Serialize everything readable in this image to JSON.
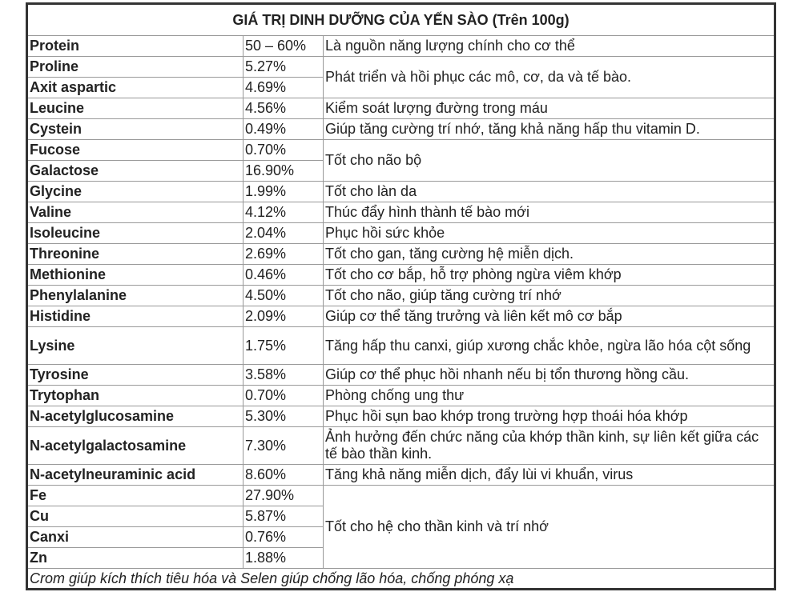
{
  "title": "GIÁ TRỊ DINH DƯỠNG CỦA YẾN SÀO (Trên 100g)",
  "rows": [
    {
      "name": "Protein",
      "value": "50 – 60%",
      "benefit": "Là nguồn năng lượng chính cho cơ thể"
    },
    {
      "name": "Proline",
      "value": "5.27%",
      "benefit": "Phát triển và hồi phục các mô, cơ, da và tế bào."
    },
    {
      "name": "Axit aspartic",
      "value": "4.69%"
    },
    {
      "name": "Leucine",
      "value": "4.56%",
      "benefit": "Kiểm soát lượng đường trong máu"
    },
    {
      "name": "Cystein",
      "value": "0.49%",
      "benefit": "Giúp tăng cường trí nhớ, tăng khả năng hấp thu vitamin D."
    },
    {
      "name": "Fucose",
      "value": "0.70%",
      "benefit": "Tốt cho não bộ"
    },
    {
      "name": "Galactose",
      "value": "16.90%"
    },
    {
      "name": "Glycine",
      "value": "1.99%",
      "benefit": "Tốt cho làn da"
    },
    {
      "name": "Valine",
      "value": "4.12%",
      "benefit": "Thúc đẩy hình thành tế bào mới"
    },
    {
      "name": "Isoleucine",
      "value": "2.04%",
      "benefit": "Phục hồi sức khỏe"
    },
    {
      "name": "Threonine",
      "value": "2.69%",
      "benefit": "Tốt cho gan, tăng cường hệ miễn dịch."
    },
    {
      "name": "Methionine",
      "value": "0.46%",
      "benefit": "Tốt cho cơ bắp, hỗ trợ phòng ngừa viêm khớp"
    },
    {
      "name": "Phenylalanine",
      "value": "4.50%",
      "benefit": "Tốt cho não, giúp tăng cường trí nhớ"
    },
    {
      "name": "Histidine",
      "value": "2.09%",
      "benefit": "Giúp cơ thể tăng trưởng và liên kết mô cơ bắp"
    },
    {
      "name": "Lysine",
      "value": "1.75%",
      "benefit": "Tăng hấp thu canxi, giúp xương chắc khỏe, ngừa lão hóa cột sống"
    },
    {
      "name": "Tyrosine",
      "value": "3.58%",
      "benefit": "Giúp cơ thể phục hồi nhanh nếu bị tổn thương hồng cầu."
    },
    {
      "name": "Trytophan",
      "value": "0.70%",
      "benefit": "Phòng chống ung thư"
    },
    {
      "name": "N-acetylglucosamine",
      "value": "5.30%",
      "benefit": "Phục hồi sụn bao khớp trong trường hợp thoái hóa khớp"
    },
    {
      "name": "N-acetylgalactosamine",
      "value": "7.30%",
      "benefit": "Ảnh hưởng đến chức năng của khớp thần kinh, sự liên kết giữa các tế bào thần kinh."
    },
    {
      "name": "N-acetylneuraminic acid",
      "value": "8.60%",
      "benefit": "Tăng khả năng miễn dịch, đẩy lùi vi khuẩn, virus"
    },
    {
      "name": "Fe",
      "value": "27.90%",
      "benefit": "Tốt cho hệ cho thần kinh và trí nhớ"
    },
    {
      "name": "Cu",
      "value": "5.87%"
    },
    {
      "name": "Canxi",
      "value": "0.76%"
    },
    {
      "name": "Zn",
      "value": "1.88%"
    }
  ],
  "footer": "Crom giúp kích thích tiêu hóa và Selen giúp chống lão hóa, chống phóng xạ"
}
